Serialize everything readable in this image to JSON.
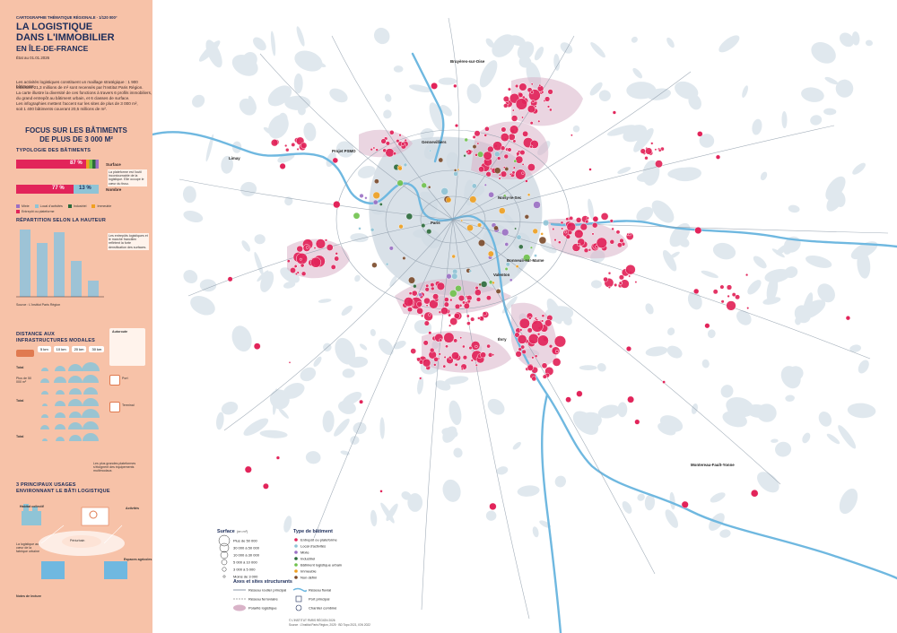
{
  "header": {
    "kicker": "CARTOGRAPHIE THÉMATIQUE RÉGIONALE · 1/120 000°",
    "title_line1": "LA LOGISTIQUE",
    "title_line2": "DANS L'IMMOBILIER",
    "title_line3": "EN ÎLE-DE-FRANCE",
    "date": "État au 01.01.2026"
  },
  "intro": {
    "line1": "Les activités logistiques constituent un maillage stratégique : 1 900 bâtiments",
    "line2": "totalisant 21,3 millions de m² sont recensés par l'Institut Paris Région.",
    "line3": "La carte illustre la diversité de ces fonctions à travers 6 profils immobiliers,",
    "line4": "du grand entrepôt au bâtiment urbain, et 6 classes de surface.",
    "line5": "Les infographies mettent l'accent sur les sites de plus de 3 000 m²,",
    "line6": "soit 1 400 bâtiments couvrant 20,5 millions de m²."
  },
  "focus": {
    "line1": "FOCUS SUR LES BÂTIMENTS",
    "line2": "DE PLUS DE 3 000 M²"
  },
  "typology": {
    "title": "TYPOLOGIE DES BÂTIMENTS",
    "surface_label": "Surface",
    "nombre_label": "Nombre",
    "surface_pct": "87 %",
    "nombre_pct": "77 %",
    "nombre_pct2": "13 %",
    "note": "La plateforme est l'outil incontournable de la logistique. Elle occupe le cœur du tissu.",
    "legend": [
      "Mixte",
      "Local d'activités",
      "Industriel",
      "Immeuble",
      "Entrepôt ou plateforme"
    ]
  },
  "height": {
    "title": "RÉPARTITION SELON LA HAUTEUR",
    "bars": [
      75,
      60,
      72,
      40,
      18
    ],
    "note": "Les entrepôts logistiques et le marché francilien reflètent la forte densification des surfaces.",
    "source": "Source : L'Institut Paris Région"
  },
  "distance": {
    "title_line1": "DISTANCE AUX",
    "title_line2": "INFRASTRUCTURES MODALES",
    "chips": [
      "5 km",
      "10 km",
      "20 km",
      "30 km"
    ],
    "autoroute_label": "Autoroute",
    "port_label": "Port",
    "terminal_label": "Terminal",
    "rows": [
      "Total",
      "Plus de 50 000 m²",
      "Total",
      "Total"
    ],
    "note": "Les plus grandes plateformes s'éloignent des équipements multimodaux."
  },
  "usages": {
    "title_line1": "3 PRINCIPAUX USAGES",
    "title_line2": "ENVIRONNANT LE BÂTI LOGISTIQUE",
    "habitat": "Habitat collectif",
    "activites": "Activités",
    "espaces_agricoles": "Espaces agricoles",
    "urbain": "Périurbain",
    "note": "La logistique au cœur de la fabrique urbaine"
  },
  "footer_note": "Notes de lecture",
  "map": {
    "cities": [
      {
        "name": "Bruyères-sur-Oise"
      },
      {
        "name": "Limay"
      },
      {
        "name": "Projet PSMO"
      },
      {
        "name": "Gennevilliers"
      },
      {
        "name": "Noisy-le-Sec"
      },
      {
        "name": "Bonneuil-sur-Marne"
      },
      {
        "name": "Valenton"
      },
      {
        "name": "Évry"
      },
      {
        "name": "Montereau-Fault-Yonne"
      },
      {
        "name": "Paris"
      }
    ]
  },
  "legend": {
    "surface_title": "Surface",
    "surface_unit": "(en m²)",
    "surface_classes": [
      "Plus de 50 000",
      "30 000 à 50 000",
      "10 000 à 30 000",
      "5 000 à 10 000",
      "3 000 à 5 000",
      "Moins de 3 000"
    ],
    "type_title": "Type de bâtiment",
    "types": [
      {
        "label": "Entrepôt ou plateforme",
        "color": "#e2245a"
      },
      {
        "label": "Local d'activités",
        "color": "#8fc4d6"
      },
      {
        "label": "Mixte",
        "color": "#9b6fc4"
      },
      {
        "label": "Industriel",
        "color": "#2c6b3b"
      },
      {
        "label": "Bâtiment logistique urbain",
        "color": "#6fc24c"
      },
      {
        "label": "Immeuble",
        "color": "#f0a020"
      },
      {
        "label": "Non défini",
        "color": "#7a4a2a"
      }
    ],
    "axes_title": "Axes et sites structurants",
    "axes": [
      "Réseau routier principal",
      "Réseau ferroviaire",
      "Polarité logistique"
    ],
    "axes2": [
      "Réseau fluvial",
      "Port principal",
      "Chantier combiné"
    ],
    "copyright": "© L'INSTITUT PARIS RÉGION 2026",
    "source": "Source : L'Institut Paris Région, 2025 · BD Topo 2021, IGN 2022"
  },
  "colors": {
    "sidebar": "#f7c2a8",
    "accent": "#e2245a",
    "water": "#6fb8e0",
    "urban": "#dde6ec",
    "polarity": "#d9b3c8"
  }
}
